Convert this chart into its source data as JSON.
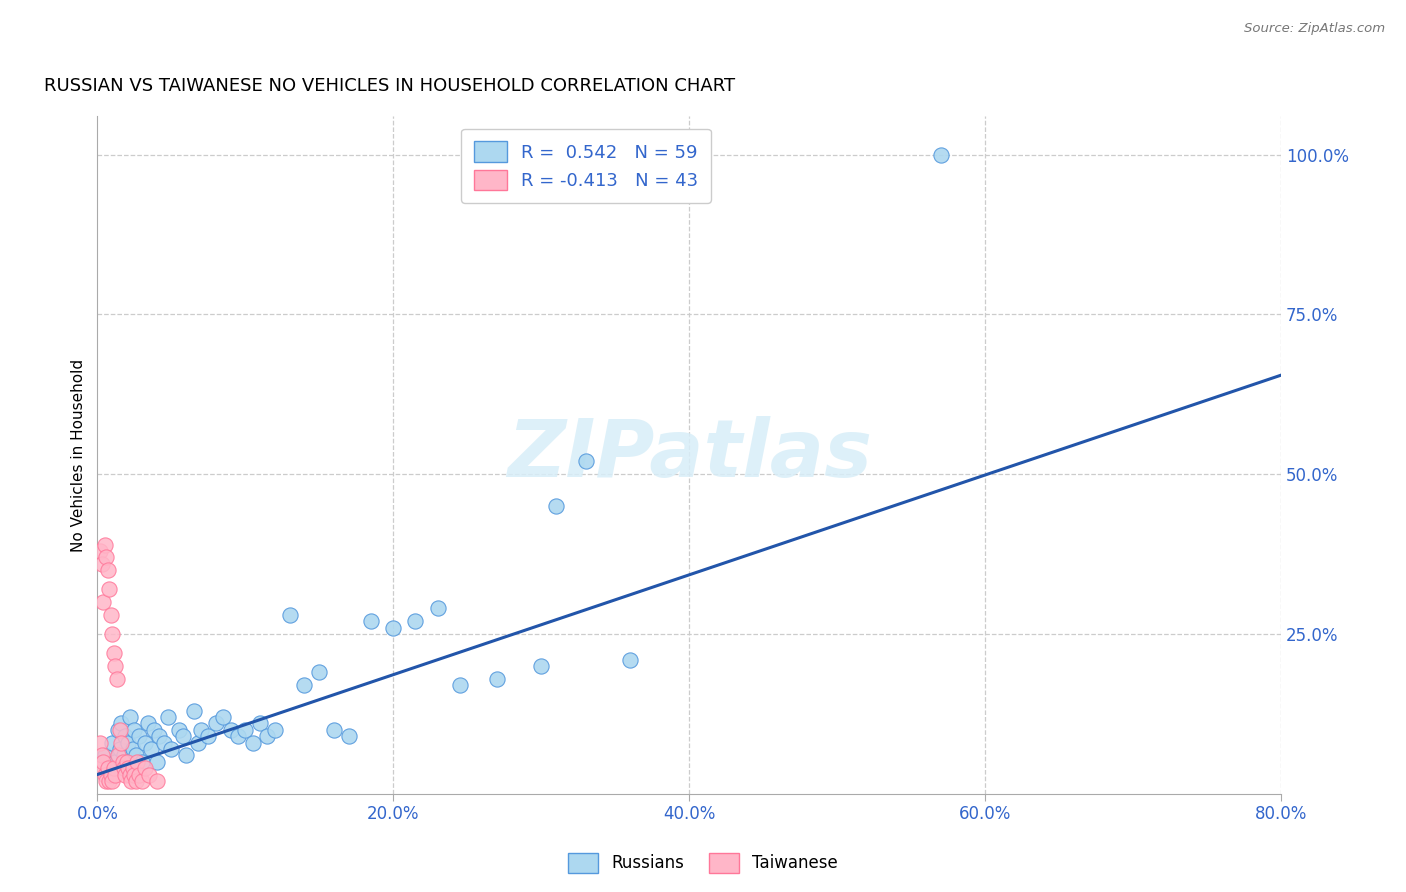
{
  "title": "RUSSIAN VS TAIWANESE NO VEHICLES IN HOUSEHOLD CORRELATION CHART",
  "source": "Source: ZipAtlas.com",
  "ylabel": "No Vehicles in Household",
  "xlim": [
    0.0,
    0.8
  ],
  "ylim": [
    0.0,
    1.06
  ],
  "xtick_labels": [
    "0.0%",
    "20.0%",
    "40.0%",
    "60.0%",
    "80.0%"
  ],
  "xtick_vals": [
    0.0,
    0.2,
    0.4,
    0.6,
    0.8
  ],
  "ytick_labels": [
    "25.0%",
    "50.0%",
    "75.0%",
    "100.0%"
  ],
  "ytick_vals": [
    0.25,
    0.5,
    0.75,
    1.0
  ],
  "russian_color": "#ADD8F0",
  "russian_edge_color": "#5599DD",
  "taiwanese_color": "#FFB6C8",
  "taiwanese_edge_color": "#FF7799",
  "regression_color": "#2255AA",
  "legend_r_russian": "R =  0.542",
  "legend_n_russian": "N = 59",
  "legend_r_taiwanese": "R = -0.413",
  "legend_n_taiwanese": "N = 43",
  "watermark": "ZIPatlas",
  "regression_x0": 0.0,
  "regression_y0": 0.03,
  "regression_x1": 0.8,
  "regression_y1": 0.655,
  "russians_x": [
    0.005,
    0.008,
    0.01,
    0.012,
    0.014,
    0.015,
    0.016,
    0.017,
    0.018,
    0.019,
    0.02,
    0.021,
    0.022,
    0.024,
    0.025,
    0.026,
    0.028,
    0.03,
    0.032,
    0.034,
    0.036,
    0.038,
    0.04,
    0.042,
    0.045,
    0.048,
    0.05,
    0.055,
    0.058,
    0.06,
    0.065,
    0.068,
    0.07,
    0.075,
    0.08,
    0.085,
    0.09,
    0.095,
    0.1,
    0.105,
    0.11,
    0.115,
    0.12,
    0.13,
    0.14,
    0.15,
    0.16,
    0.17,
    0.185,
    0.2,
    0.215,
    0.23,
    0.245,
    0.27,
    0.3,
    0.31,
    0.33,
    0.36,
    0.57
  ],
  "russians_y": [
    0.06,
    0.04,
    0.08,
    0.05,
    0.1,
    0.07,
    0.11,
    0.04,
    0.06,
    0.09,
    0.05,
    0.08,
    0.12,
    0.07,
    0.1,
    0.06,
    0.09,
    0.05,
    0.08,
    0.11,
    0.07,
    0.1,
    0.05,
    0.09,
    0.08,
    0.12,
    0.07,
    0.1,
    0.09,
    0.06,
    0.13,
    0.08,
    0.1,
    0.09,
    0.11,
    0.12,
    0.1,
    0.09,
    0.1,
    0.08,
    0.11,
    0.09,
    0.1,
    0.28,
    0.17,
    0.19,
    0.1,
    0.09,
    0.27,
    0.26,
    0.27,
    0.29,
    0.17,
    0.18,
    0.2,
    0.45,
    0.52,
    0.21,
    1.0
  ],
  "taiwanese_x": [
    0.001,
    0.002,
    0.002,
    0.003,
    0.003,
    0.004,
    0.004,
    0.005,
    0.005,
    0.006,
    0.006,
    0.007,
    0.007,
    0.008,
    0.008,
    0.009,
    0.009,
    0.01,
    0.01,
    0.011,
    0.011,
    0.012,
    0.012,
    0.013,
    0.014,
    0.015,
    0.016,
    0.017,
    0.018,
    0.019,
    0.02,
    0.021,
    0.022,
    0.023,
    0.024,
    0.025,
    0.026,
    0.027,
    0.028,
    0.03,
    0.032,
    0.035,
    0.04
  ],
  "taiwanese_y": [
    0.04,
    0.38,
    0.08,
    0.36,
    0.06,
    0.3,
    0.05,
    0.39,
    0.03,
    0.37,
    0.02,
    0.35,
    0.04,
    0.32,
    0.02,
    0.28,
    0.03,
    0.25,
    0.02,
    0.22,
    0.04,
    0.2,
    0.03,
    0.18,
    0.06,
    0.1,
    0.08,
    0.05,
    0.04,
    0.03,
    0.05,
    0.04,
    0.03,
    0.02,
    0.04,
    0.03,
    0.02,
    0.05,
    0.03,
    0.02,
    0.04,
    0.03,
    0.02
  ]
}
